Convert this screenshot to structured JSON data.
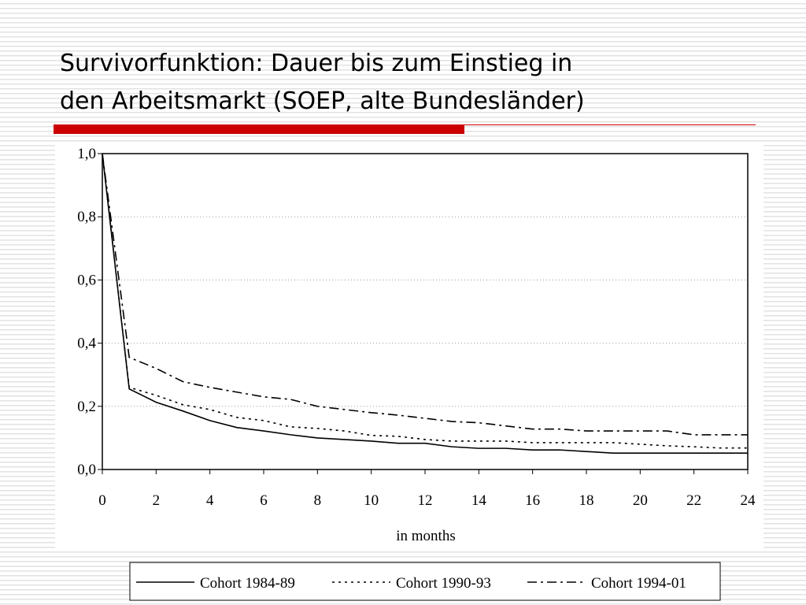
{
  "chart_data": {
    "type": "line",
    "title_lines": [
      "Survivorfunktion: Dauer bis zum Einstieg in",
      "den Arbeitsmarkt (SOEP, alte Bundesländer)"
    ],
    "xlabel": "in months",
    "x": [
      0,
      1,
      2,
      3,
      4,
      5,
      6,
      7,
      8,
      9,
      10,
      11,
      12,
      13,
      14,
      15,
      16,
      17,
      18,
      19,
      20,
      21,
      22,
      23,
      24
    ],
    "series": [
      {
        "name": "Cohort 1984-89",
        "color": "#000000",
        "line_style": "solid",
        "values": [
          1.0,
          0.255,
          0.213,
          0.185,
          0.155,
          0.133,
          0.122,
          0.11,
          0.1,
          0.095,
          0.09,
          0.083,
          0.083,
          0.072,
          0.067,
          0.067,
          0.062,
          0.062,
          0.057,
          0.052,
          0.052,
          0.052,
          0.052,
          0.052,
          0.052
        ]
      },
      {
        "name": "Cohort 1990-93",
        "color": "#000000",
        "line_style": "dotted",
        "values": [
          1.0,
          0.26,
          0.235,
          0.205,
          0.19,
          0.165,
          0.155,
          0.135,
          0.13,
          0.122,
          0.108,
          0.105,
          0.095,
          0.09,
          0.09,
          0.09,
          0.085,
          0.085,
          0.085,
          0.085,
          0.08,
          0.075,
          0.072,
          0.068,
          0.068
        ]
      },
      {
        "name": "Cohort 1994-01",
        "color": "#000000",
        "line_style": "dashdot",
        "values": [
          1.0,
          0.355,
          0.32,
          0.278,
          0.26,
          0.245,
          0.23,
          0.222,
          0.2,
          0.19,
          0.18,
          0.172,
          0.162,
          0.152,
          0.148,
          0.138,
          0.128,
          0.128,
          0.122,
          0.122,
          0.122,
          0.122,
          0.11,
          0.11,
          0.11
        ]
      }
    ],
    "xlim": [
      0,
      24
    ],
    "xticks": [
      0,
      2,
      4,
      6,
      8,
      10,
      12,
      14,
      16,
      18,
      20,
      22,
      24
    ],
    "ylim": [
      0,
      1
    ],
    "yticks": [
      {
        "value": 0,
        "label": "0,0"
      },
      {
        "value": 0.2,
        "label": "0,2"
      },
      {
        "value": 0.4,
        "label": "0,4"
      },
      {
        "value": 0.6,
        "label": "0,6"
      },
      {
        "value": 0.8,
        "label": "0,8"
      },
      {
        "value": 1,
        "label": "1,0"
      }
    ],
    "grid": true,
    "legend": "bottom"
  }
}
